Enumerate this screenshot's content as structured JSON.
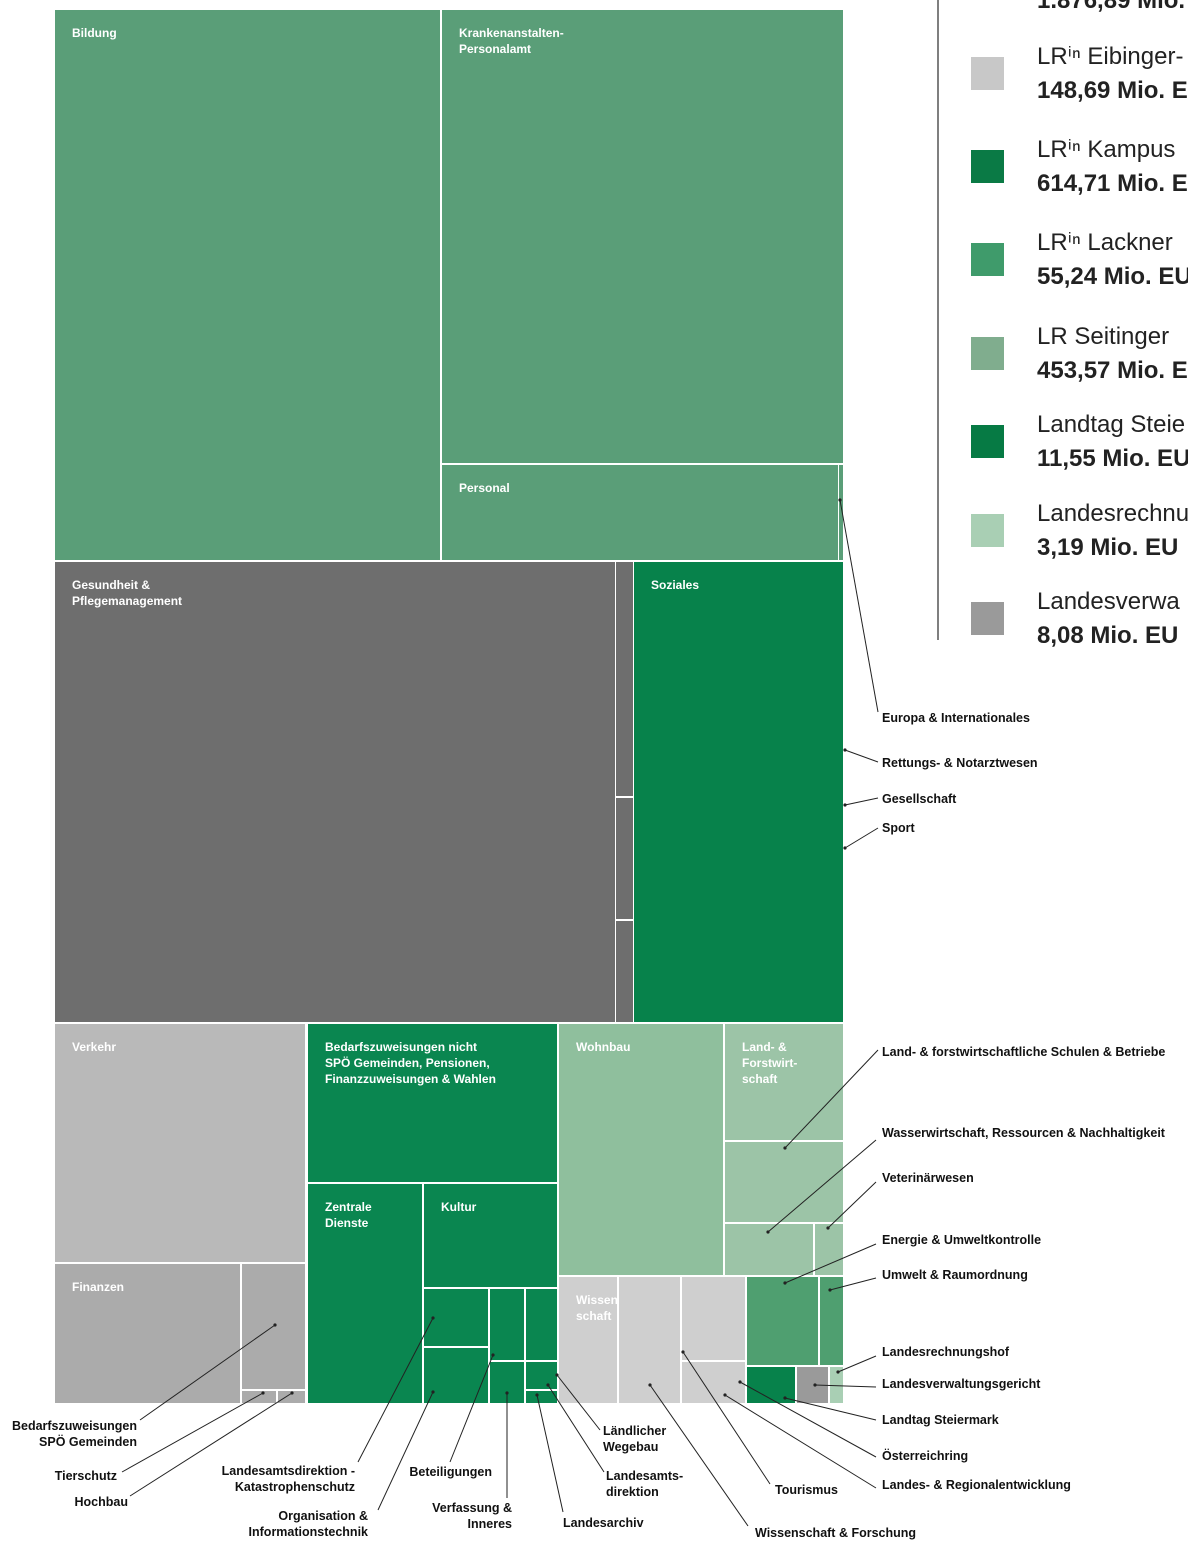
{
  "treemap": {
    "cells": [
      {
        "label": [
          "Bildung"
        ]
      },
      {
        "label": [
          "Krankenanstalten-",
          "Personalamt"
        ]
      },
      {
        "label": [
          "Personal"
        ]
      },
      {
        "label": [
          "Gesundheit &",
          "Pflegemanagement"
        ]
      },
      {
        "label": [
          "Soziales"
        ]
      },
      {
        "label": [
          "Verkehr"
        ]
      },
      {
        "label": [
          "Finanzen"
        ]
      },
      {
        "label": [
          "Bedarfszuweisungen nicht",
          "SPÖ Gemeinden, Pensionen,",
          "Finanzzuweisungen & Wahlen"
        ]
      },
      {
        "label": [
          "Zentrale",
          "Dienste"
        ]
      },
      {
        "label": [
          "Kultur"
        ]
      },
      {
        "label": [
          "Wohnbau"
        ]
      },
      {
        "label": [
          "Land- &",
          "Forstwirt-",
          "schaft"
        ]
      },
      {
        "label": [
          "Wissen-",
          "schaft"
        ]
      }
    ]
  },
  "callouts": [
    {
      "label": [
        "Europa & Internationales"
      ]
    },
    {
      "label": [
        "Rettungs- & Notarztwesen"
      ]
    },
    {
      "label": [
        "Gesellschaft"
      ]
    },
    {
      "label": [
        "Sport"
      ]
    },
    {
      "label": [
        "Land- & forstwirtschaftliche Schulen & Betriebe"
      ]
    },
    {
      "label": [
        "Wasserwirtschaft, Ressourcen & Nachhaltigkeit"
      ]
    },
    {
      "label": [
        "Veterinärwesen"
      ]
    },
    {
      "label": [
        "Energie & Umweltkontrolle"
      ]
    },
    {
      "label": [
        "Umwelt & Raumordnung"
      ]
    },
    {
      "label": [
        "Landesrechnungshof"
      ]
    },
    {
      "label": [
        "Landesverwaltungsgericht"
      ]
    },
    {
      "label": [
        "Landtag Steiermark"
      ]
    },
    {
      "label": [
        "Österreichring"
      ]
    },
    {
      "label": [
        "Landes- & Regionalentwicklung"
      ]
    },
    {
      "label": [
        "Tourismus"
      ]
    },
    {
      "label": [
        "Wissenschaft & Forschung"
      ]
    },
    {
      "label": [
        "Landesarchiv"
      ]
    },
    {
      "label": [
        "Ländlicher",
        "Wegebau"
      ]
    },
    {
      "label": [
        "Landesamts-",
        "direktion"
      ]
    },
    {
      "label": [
        "Verfassung &",
        "Inneres"
      ]
    },
    {
      "label": [
        "Beteiligungen"
      ]
    },
    {
      "label": [
        "Organisation &",
        "Informationstechnik"
      ]
    },
    {
      "label": [
        "Landesamtsdirektion -",
        "Katastrophenschutz"
      ]
    },
    {
      "label": [
        "Bedarfszuweisungen",
        "SPÖ Gemeinden"
      ]
    },
    {
      "label": [
        "Tierschutz"
      ]
    },
    {
      "label": [
        "Hochbau"
      ]
    }
  ],
  "legend": {
    "top_value": "1.876,89 Mio.",
    "items": [
      {
        "name": "LRⁱⁿ Eibinger-",
        "value": "148,69 Mio. E"
      },
      {
        "name": "LRⁱⁿ Kampus",
        "value": "614,71 Mio. E"
      },
      {
        "name": "LRⁱⁿ Lackner",
        "value": "55,24 Mio. EU"
      },
      {
        "name": "LR Seitinger",
        "value": "453,57 Mio. E"
      },
      {
        "name": "Landtag Steie",
        "value": "11,55 Mio. EU"
      },
      {
        "name": "Landesrechnu",
        "value": "3,19 Mio. EU"
      },
      {
        "name": "Landesverwa",
        "value": "8,08 Mio. EU"
      }
    ]
  }
}
